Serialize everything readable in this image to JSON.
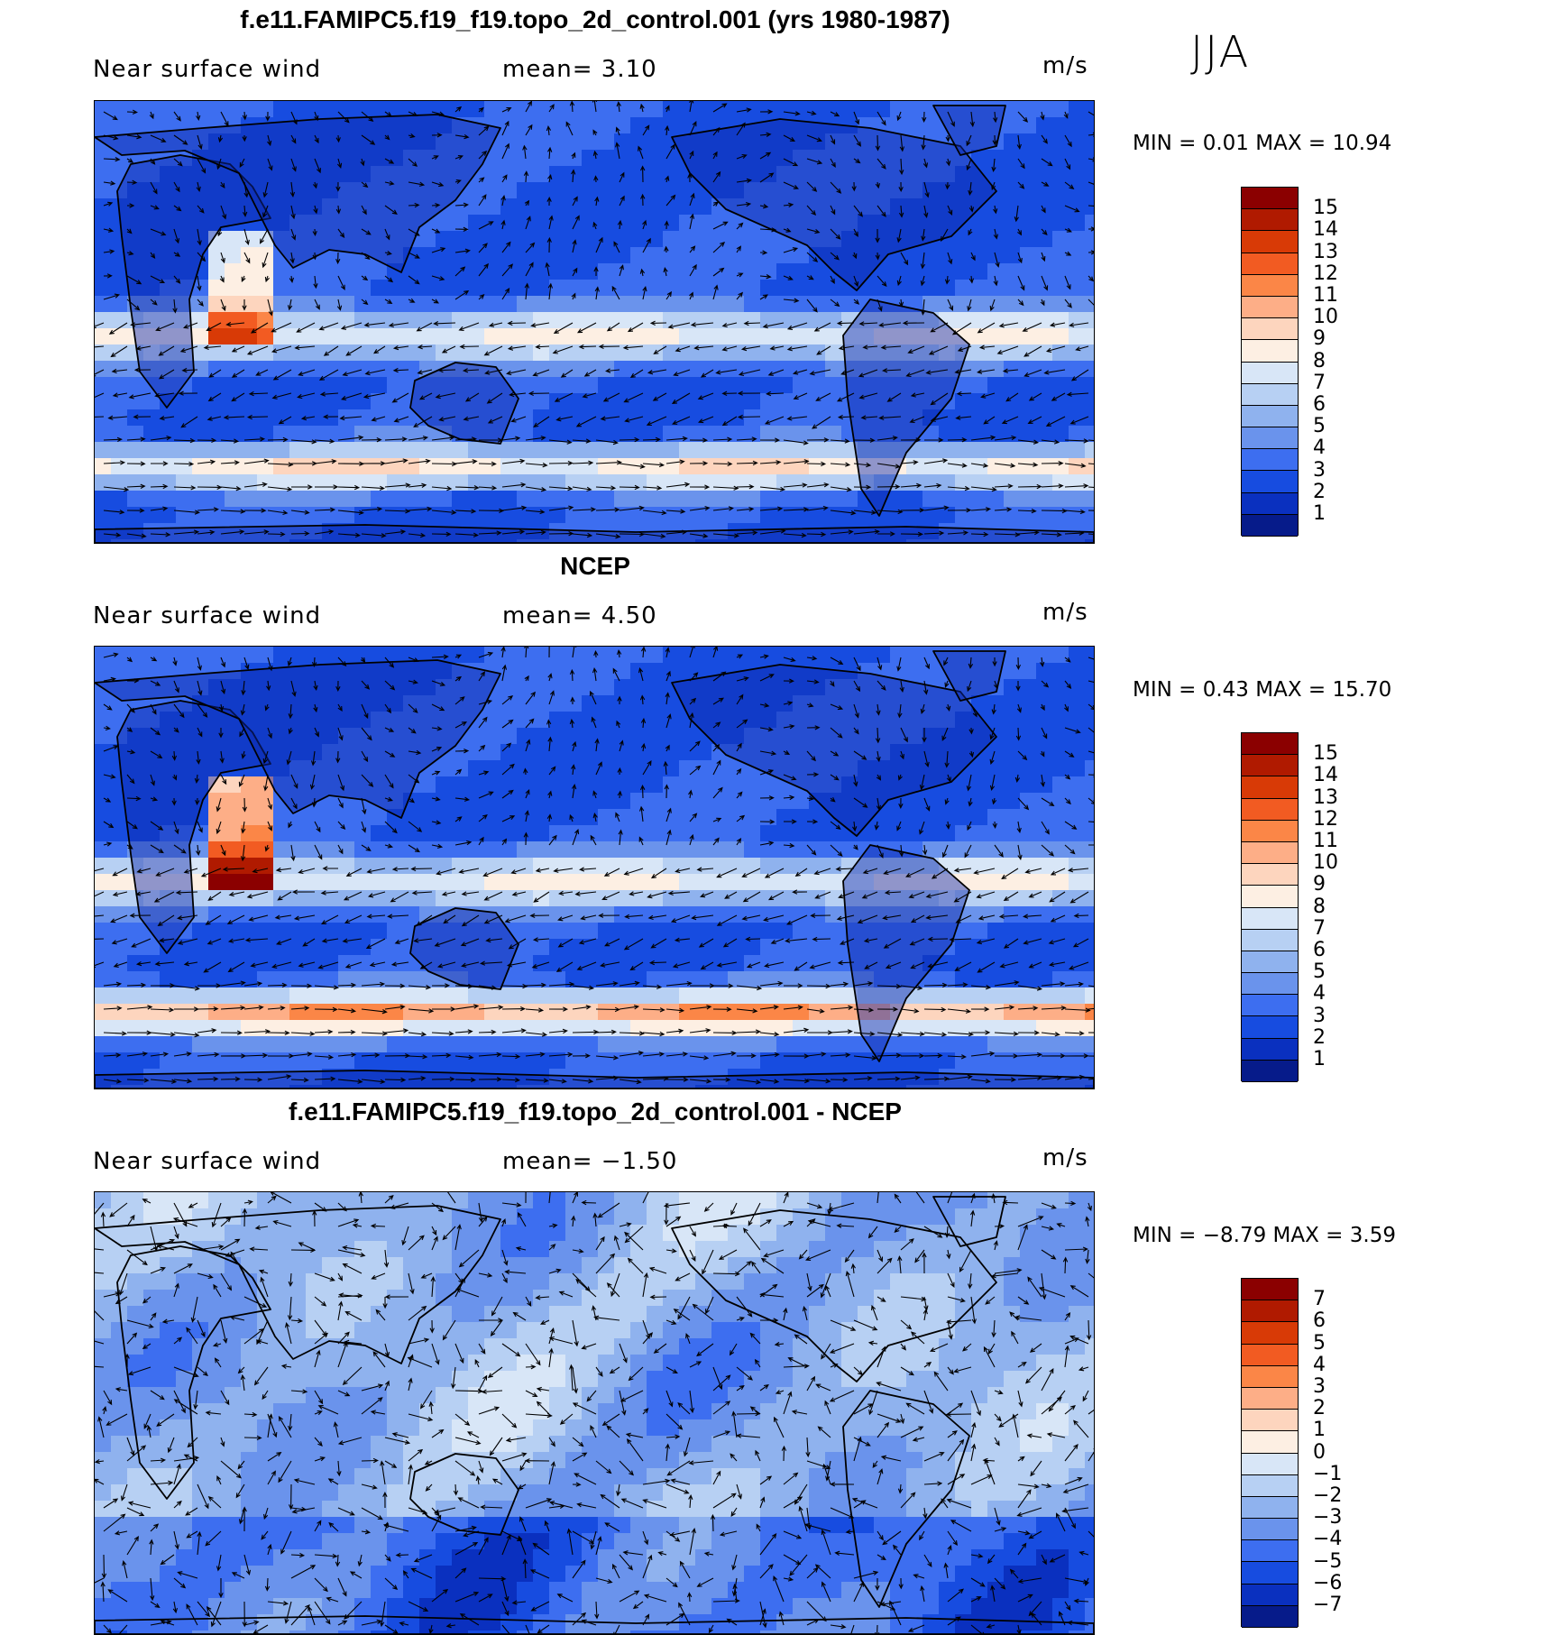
{
  "season": "JJA",
  "panels": [
    {
      "id": "model",
      "title": "f.e11.FAMIPC5.f19_f19.topo_2d_control.001 (yrs 1980-1987)",
      "variable": "Near surface wind",
      "mean": "mean=   3.10",
      "units": "m/s",
      "min_max": "MIN =    0.01  MAX =   10.94",
      "colorbar": {
        "levels": [
          "15",
          "14",
          "13",
          "12",
          "11",
          "10",
          "9",
          "8",
          "7",
          "6",
          "5",
          "4",
          "3",
          "2",
          "1"
        ],
        "colors": [
          "#8b0000",
          "#b01a00",
          "#d83a06",
          "#f25b22",
          "#fb8647",
          "#fdae87",
          "#fdd5be",
          "#fdefe3",
          "#d8e6f7",
          "#b7d0f3",
          "#8fb2ee",
          "#6a93ec",
          "#3d6ef0",
          "#174ce0",
          "#0a30bf",
          "#061b8a"
        ]
      }
    },
    {
      "id": "obs",
      "title": "NCEP",
      "variable": "Near surface wind",
      "mean": "mean=   4.50",
      "units": "m/s",
      "min_max": "MIN =    0.43  MAX =   15.70",
      "colorbar": {
        "levels": [
          "15",
          "14",
          "13",
          "12",
          "11",
          "10",
          "9",
          "8",
          "7",
          "6",
          "5",
          "4",
          "3",
          "2",
          "1"
        ],
        "colors": [
          "#8b0000",
          "#b01a00",
          "#d83a06",
          "#f25b22",
          "#fb8647",
          "#fdae87",
          "#fdd5be",
          "#fdefe3",
          "#d8e6f7",
          "#b7d0f3",
          "#8fb2ee",
          "#6a93ec",
          "#3d6ef0",
          "#174ce0",
          "#0a30bf",
          "#061b8a"
        ]
      }
    },
    {
      "id": "diff",
      "title": "f.e11.FAMIPC5.f19_f19.topo_2d_control.001 - NCEP",
      "variable": "Near surface wind",
      "mean": "mean=  −1.50",
      "units": "m/s",
      "min_max": "MIN =   −8.79  MAX =     3.59",
      "colorbar": {
        "levels": [
          "7",
          "6",
          "5",
          "4",
          "3",
          "2",
          "1",
          "0",
          "−1",
          "−2",
          "−3",
          "−4",
          "−5",
          "−6",
          "−7"
        ],
        "colors": [
          "#8b0000",
          "#b01a00",
          "#d83a06",
          "#f25b22",
          "#fb8647",
          "#fdae87",
          "#fdd5be",
          "#fdefe3",
          "#d8e6f7",
          "#b7d0f3",
          "#8fb2ee",
          "#6a93ec",
          "#3d6ef0",
          "#174ce0",
          "#0a30bf",
          "#061b8a"
        ]
      }
    }
  ]
}
